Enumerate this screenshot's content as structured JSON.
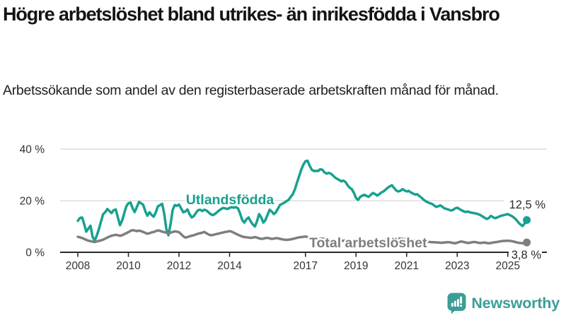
{
  "header": {
    "title": "Högre arbetslöshet bland utrikes- än inrikesfödda i Vansbro",
    "subtitle": "Arbetssökande som andel av den registerbaserade arbetskraften månad för månad."
  },
  "footer": {
    "brand": "Newsworthy",
    "logo_icon": "bar-chart-speech-bubble-icon",
    "brand_color": "#3b9e96"
  },
  "colors": {
    "foreign_born_line": "#17a18f",
    "total_line": "#7e7e7e",
    "gridline": "#d8d8d8",
    "axis": "#2b2b2b",
    "tick_text": "#333333",
    "end_label_text": "#2b2b2b"
  },
  "chart_data": {
    "type": "line",
    "title": "",
    "xlabel": "",
    "ylabel": "",
    "x_unit": "year-month",
    "y_unit": "percent",
    "x_start_year": 2008,
    "points_per_year": 12,
    "xlim": [
      2007.3,
      2026.45
    ],
    "ylim": [
      0,
      40
    ],
    "grid": "horizontal-only",
    "legend_position": "inline-labels",
    "x_ticks": [
      2008,
      2010,
      2012,
      2014,
      2017,
      2019,
      2021,
      2023,
      2025
    ],
    "y_ticks": [
      {
        "value": 40,
        "label": "40 %"
      },
      {
        "value": 20,
        "label": "20 %"
      },
      {
        "value": 0,
        "label": "0 %"
      }
    ],
    "series": [
      {
        "name": "Utlandsfödda",
        "color": "#17a18f",
        "end_label": "12,5 %",
        "last_value": 12.5,
        "values": [
          12.2,
          13.3,
          13.5,
          11.0,
          8.0,
          9.2,
          10.3,
          6.0,
          4.5,
          6.5,
          9.0,
          12.0,
          14.8,
          15.5,
          16.8,
          16.0,
          15.2,
          16.3,
          16.6,
          13.5,
          10.5,
          12.3,
          15.0,
          17.8,
          19.0,
          19.3,
          17.0,
          15.6,
          17.5,
          19.5,
          19.0,
          18.4,
          16.0,
          14.2,
          15.5,
          14.5,
          13.8,
          15.5,
          17.8,
          18.3,
          18.8,
          15.0,
          9.0,
          6.6,
          11.0,
          16.5,
          18.3,
          18.0,
          18.5,
          17.0,
          15.5,
          15.8,
          16.6,
          14.8,
          13.5,
          14.0,
          15.2,
          16.3,
          16.5,
          16.0,
          16.5,
          16.2,
          15.5,
          14.8,
          14.4,
          14.8,
          15.5,
          16.2,
          16.8,
          17.2,
          17.0,
          16.8,
          17.2,
          17.5,
          17.3,
          17.5,
          17.0,
          15.0,
          12.5,
          11.5,
          12.8,
          13.5,
          12.0,
          10.8,
          10.0,
          12.0,
          14.8,
          13.5,
          11.5,
          12.5,
          14.5,
          16.5,
          15.8,
          14.8,
          15.5,
          17.0,
          18.4,
          18.8,
          19.3,
          19.8,
          20.3,
          21.5,
          22.5,
          24.5,
          27.0,
          29.5,
          32.0,
          34.0,
          35.3,
          35.5,
          33.5,
          32.0,
          31.5,
          31.6,
          31.5,
          32.2,
          32.0,
          31.0,
          30.5,
          30.8,
          30.5,
          29.8,
          29.0,
          28.5,
          28.0,
          27.5,
          27.8,
          27.2,
          26.0,
          25.0,
          24.5,
          23.0,
          21.0,
          20.3,
          21.5,
          22.0,
          22.3,
          21.8,
          21.5,
          22.3,
          23.0,
          22.6,
          22.0,
          22.5,
          23.2,
          23.6,
          24.3,
          25.0,
          25.5,
          26.0,
          25.0,
          24.0,
          23.6,
          23.8,
          24.5,
          24.0,
          23.6,
          23.8,
          23.2,
          22.8,
          22.4,
          22.5,
          21.8,
          21.2,
          20.4,
          19.8,
          19.4,
          19.0,
          18.8,
          18.2,
          17.6,
          17.8,
          18.2,
          17.6,
          17.0,
          16.8,
          16.5,
          16.2,
          16.4,
          17.0,
          17.3,
          16.8,
          16.3,
          15.9,
          15.6,
          15.8,
          15.5,
          15.3,
          15.2,
          15.0,
          14.8,
          14.4,
          13.9,
          13.4,
          12.9,
          13.3,
          14.1,
          13.6,
          13.2,
          13.5,
          13.9,
          14.2,
          14.4,
          14.6,
          14.8,
          14.4,
          14.0,
          13.4,
          12.6,
          11.6,
          10.8,
          10.2,
          11.2,
          12.5
        ]
      },
      {
        "name": "Total arbetslöshet",
        "color": "#7e7e7e",
        "end_label": "3,8 %",
        "last_value": 3.8,
        "values": [
          6.0,
          5.8,
          5.5,
          5.2,
          4.8,
          4.5,
          4.3,
          4.1,
          4.0,
          4.2,
          4.4,
          4.6,
          4.9,
          5.3,
          5.7,
          6.1,
          6.4,
          6.6,
          6.8,
          6.6,
          6.4,
          6.6,
          7.0,
          7.4,
          7.8,
          8.3,
          8.6,
          8.4,
          8.2,
          8.4,
          8.2,
          7.9,
          7.5,
          7.2,
          7.4,
          7.7,
          7.9,
          8.2,
          8.5,
          8.3,
          8.0,
          7.8,
          7.6,
          7.4,
          7.6,
          7.9,
          8.1,
          8.0,
          7.8,
          7.0,
          6.2,
          5.7,
          5.9,
          6.2,
          6.4,
          6.6,
          6.9,
          7.2,
          7.4,
          7.6,
          7.9,
          7.4,
          6.9,
          6.6,
          6.7,
          6.9,
          7.1,
          7.3,
          7.5,
          7.7,
          7.9,
          8.0,
          8.2,
          8.0,
          7.6,
          7.2,
          6.8,
          6.4,
          6.1,
          5.9,
          5.8,
          5.7,
          5.6,
          5.7,
          5.9,
          5.7,
          5.4,
          5.2,
          5.3,
          5.5,
          5.6,
          5.4,
          5.2,
          5.3,
          5.5,
          5.4,
          5.2,
          5.0,
          4.9,
          4.8,
          4.9,
          5.0,
          5.2,
          5.4,
          5.6,
          5.8,
          5.9,
          6.0,
          6.1,
          5.9,
          5.6,
          5.3,
          5.1,
          5.0,
          5.1,
          5.2,
          5.3,
          5.2,
          5.0,
          4.9,
          4.8,
          4.7,
          4.6,
          4.5,
          4.4,
          4.4,
          4.5,
          4.6,
          4.5,
          4.4,
          4.3,
          4.3,
          4.2,
          4.2,
          4.3,
          4.4,
          4.4,
          4.3,
          4.3,
          4.4,
          4.5,
          4.4,
          4.4,
          4.5,
          4.6,
          4.7,
          5.0,
          5.4,
          5.6,
          5.7,
          5.6,
          5.5,
          5.4,
          5.3,
          5.2,
          5.1,
          5.0,
          4.9,
          4.8,
          4.7,
          4.6,
          4.5,
          4.4,
          4.3,
          4.2,
          4.1,
          4.0,
          4.0,
          3.9,
          3.9,
          3.8,
          3.8,
          3.7,
          3.7,
          3.8,
          3.9,
          3.9,
          3.8,
          3.6,
          3.5,
          3.7,
          4.0,
          4.2,
          4.0,
          3.8,
          3.6,
          3.7,
          3.9,
          4.0,
          3.9,
          3.7,
          3.6,
          3.7,
          3.8,
          3.6,
          3.5,
          3.6,
          3.8,
          3.9,
          4.0,
          4.2,
          4.3,
          4.4,
          4.4,
          4.5,
          4.4,
          4.3,
          4.1,
          3.9,
          3.7,
          3.6,
          3.5,
          3.6,
          3.8
        ]
      }
    ]
  }
}
